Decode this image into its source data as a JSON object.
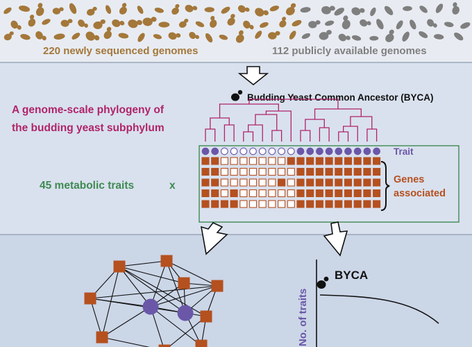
{
  "labels": {
    "new_genomes": "220 newly sequenced genomes",
    "public_genomes": "112 publicly available genomes",
    "ancestor": "Budding Yeast Common Ancestor (BYCA)",
    "phylogeny_line1": "A genome-scale phylogeny of",
    "phylogeny_line2": "the budding yeast subphylum",
    "metabolic_traits": "45 metabolic traits",
    "times": "x",
    "trait": "Trait",
    "genes_line1": "Genes",
    "genes_line2": "associated",
    "axis_y": "No. of traits",
    "byca_plot": "BYCA"
  },
  "colors": {
    "brown": "#a4773a",
    "gray": "#7f7f7f",
    "pink": "#b0246a",
    "green": "#3f8a52",
    "purple": "#6a57a8",
    "orange": "#b5501f"
  },
  "trait_row": [
    1,
    1,
    0,
    0,
    0,
    0,
    0,
    0,
    0,
    0,
    1,
    1,
    1,
    1,
    1,
    1,
    1,
    1,
    1
  ],
  "gene_rows": [
    [
      1,
      1,
      0,
      0,
      0,
      0,
      0,
      0,
      0,
      1,
      1,
      1,
      1,
      1,
      1,
      1,
      1,
      1,
      1
    ],
    [
      1,
      1,
      0,
      0,
      0,
      0,
      0,
      0,
      0,
      0,
      1,
      1,
      1,
      1,
      1,
      1,
      1,
      1,
      1
    ],
    [
      1,
      1,
      0,
      0,
      0,
      0,
      0,
      0,
      1,
      0,
      1,
      1,
      1,
      1,
      1,
      1,
      1,
      1,
      1
    ],
    [
      1,
      1,
      0,
      1,
      0,
      0,
      0,
      0,
      0,
      0,
      1,
      1,
      1,
      1,
      1,
      1,
      1,
      1,
      1
    ],
    [
      1,
      1,
      1,
      1,
      0,
      0,
      0,
      0,
      0,
      0,
      1,
      1,
      1,
      1,
      1,
      1,
      1,
      1,
      1
    ]
  ]
}
